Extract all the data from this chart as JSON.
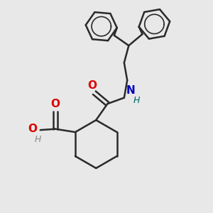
{
  "bg_color": "#e8e8e8",
  "bond_color": "#2a2a2a",
  "bond_lw": 1.8,
  "atom_colors": {
    "O": "#dd0000",
    "N": "#0000bb",
    "H_O": "#888888",
    "H_N": "#006666"
  },
  "font_size_atom": 10,
  "font_size_H": 9,
  "xlim": [
    0,
    10
  ],
  "ylim": [
    0,
    10
  ],
  "figsize": [
    3.0,
    3.0
  ],
  "dpi": 100
}
